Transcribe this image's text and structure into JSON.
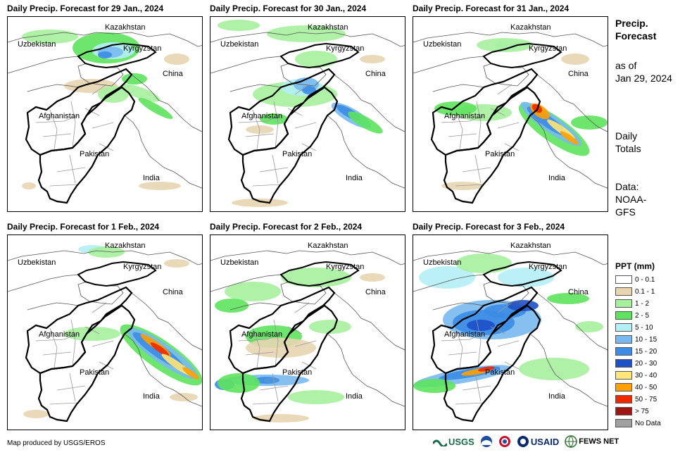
{
  "panels": [
    {
      "title": "Daily Precip. Forecast for 29 Jan., 2024",
      "labels": {
        "kazakhstan": "Kazakhstan",
        "uzbekistan": "Uzbekistan",
        "kyrgyzstan": "Kyrgyzstan",
        "china": "China",
        "afghanistan": "Afghanistan",
        "pakistan": "Pakistan",
        "india": "India"
      }
    },
    {
      "title": "Daily Precip. Forecast for 30 Jan., 2024",
      "labels": {
        "kazakhstan": "Kazakhstan",
        "uzbekistan": "Uzbekistan",
        "kyrgyzstan": "Kyrgyzstan",
        "china": "China",
        "afghanistan": "Afghanistan",
        "pakistan": "Pakistan",
        "india": "India"
      }
    },
    {
      "title": "Daily Precip. Forecast for 31 Jan., 2024",
      "labels": {
        "kazakhstan": "Kazakhstan",
        "uzbekistan": "Uzbekistan",
        "kyrgyzstan": "Kyrgyzstan",
        "china": "China",
        "afghanistan": "Afghanistan",
        "pakistan": "Pakistan",
        "india": "India"
      }
    },
    {
      "title": "Daily Precip. Forecast for 1 Feb., 2024",
      "labels": {
        "kazakhstan": "Kazakhstan",
        "uzbekistan": "Uzbekistan",
        "kyrgyzstan": "Kyrgyzstan",
        "china": "China",
        "afghanistan": "Afghanistan",
        "pakistan": "Pakistan",
        "india": "India"
      }
    },
    {
      "title": "Daily Precip. Forecast for 2 Feb., 2024",
      "labels": {
        "kazakhstan": "Kazakhstan",
        "uzbekistan": "Uzbekistan",
        "kyrgyzstan": "Kyrgyzstan",
        "china": "China",
        "afghanistan": "Afghanistan",
        "pakistan": "Pakistan",
        "india": "India"
      }
    },
    {
      "title": "Daily Precip. Forecast for 3 Feb., 2024",
      "labels": {
        "kazakhstan": "Kazakhstan",
        "uzbekistan": "Uzbekistan",
        "kyrgyzstan": "Kyrgyzstan",
        "china": "China",
        "afghanistan": "Afghanistan",
        "pakistan": "Pakistan",
        "india": "India"
      }
    }
  ],
  "sidebar": {
    "title_line1": "Precip.",
    "title_line2": "Forecast",
    "asof_line1": "as of",
    "asof_line2": "Jan 29, 2024",
    "daily_line1": "Daily",
    "daily_line2": "Totals",
    "data_line1": "Data:",
    "data_line2": "NOAA-",
    "data_line3": "GFS"
  },
  "legend": {
    "title": "PPT (mm)",
    "items": [
      {
        "label": "0 - 0.1",
        "color": "#ffffff"
      },
      {
        "label": "0.1 - 1",
        "color": "#e8d5b0"
      },
      {
        "label": "1 - 2",
        "color": "#a6ef9c"
      },
      {
        "label": "2 - 5",
        "color": "#5ee35e"
      },
      {
        "label": "5 - 10",
        "color": "#b4f0f5"
      },
      {
        "label": "10 - 15",
        "color": "#78b9f0"
      },
      {
        "label": "15 - 20",
        "color": "#3c8ce6"
      },
      {
        "label": "20 - 30",
        "color": "#1e50c8"
      },
      {
        "label": "30 - 40",
        "color": "#ffe678"
      },
      {
        "label": "40 - 50",
        "color": "#ffa000"
      },
      {
        "label": "50 - 75",
        "color": "#f02800"
      },
      {
        "label": "> 75",
        "color": "#a01414"
      },
      {
        "label": "No Data",
        "color": "#a0a0a0"
      }
    ]
  },
  "footer": {
    "credit": "Map produced by USGS/EROS",
    "logos": {
      "usgs": "USGS",
      "usaid": "USAID",
      "fewsnet": "FEWS NET"
    }
  }
}
